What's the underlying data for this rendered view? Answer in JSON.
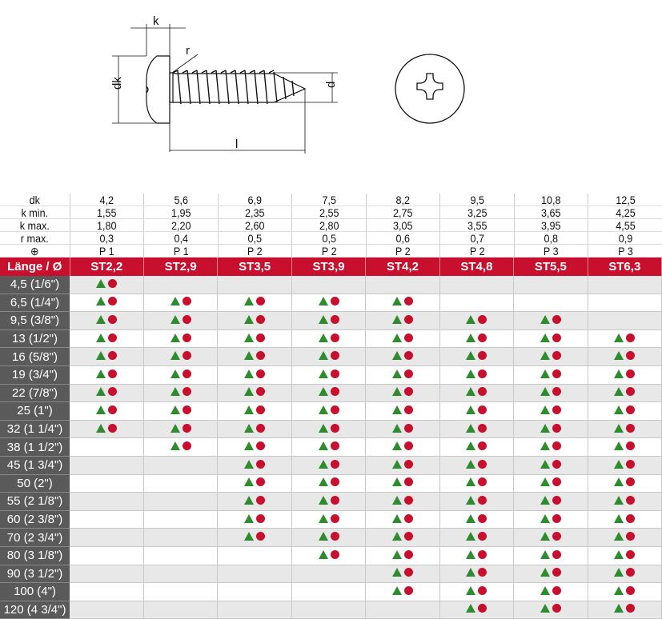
{
  "drawing": {
    "labels": {
      "k": "k",
      "r": "r",
      "dk": "dk",
      "d": "d",
      "l": "l"
    }
  },
  "colors": {
    "header_red": "#c8102e",
    "triangle_green": "#2e8b2e",
    "circle_red": "#c8102e",
    "label_grey": "#5a5a5a"
  },
  "spec": {
    "rows": [
      {
        "label": "dk",
        "values": [
          "4,2",
          "5,6",
          "6,9",
          "7,5",
          "8,2",
          "9,5",
          "10,8",
          "12,5"
        ]
      },
      {
        "label": "k min.",
        "values": [
          "1,55",
          "1,95",
          "2,35",
          "2,55",
          "2,75",
          "3,25",
          "3,65",
          "4,25"
        ]
      },
      {
        "label": "k max.",
        "values": [
          "1,80",
          "2,20",
          "2,60",
          "2,80",
          "3,05",
          "3,55",
          "3,95",
          "4,55"
        ]
      },
      {
        "label": "r max.",
        "values": [
          "0,3",
          "0,4",
          "0,5",
          "0,5",
          "0,6",
          "0,7",
          "0,8",
          "0,9"
        ]
      },
      {
        "label": "⊕",
        "icon": "phillips-drive-icon",
        "values": [
          "P 1",
          "P 1",
          "P 2",
          "P 2",
          "P 2",
          "P 2",
          "P 3",
          "P 3"
        ]
      }
    ]
  },
  "table": {
    "corner": "Länge / Ø",
    "columns": [
      "ST2,2",
      "ST2,9",
      "ST3,5",
      "ST3,9",
      "ST4,2",
      "ST4,8",
      "ST5,5",
      "ST6,3"
    ],
    "rows": [
      {
        "length": "4,5 (1/6\")",
        "avail": [
          1,
          0,
          0,
          0,
          0,
          0,
          0,
          0
        ]
      },
      {
        "length": "6,5 (1/4\")",
        "avail": [
          1,
          1,
          1,
          1,
          1,
          0,
          0,
          0
        ]
      },
      {
        "length": "9,5 (3/8\")",
        "avail": [
          1,
          1,
          1,
          1,
          1,
          1,
          1,
          0
        ]
      },
      {
        "length": "13 (1/2\")",
        "avail": [
          1,
          1,
          1,
          1,
          1,
          1,
          1,
          1
        ]
      },
      {
        "length": "16 (5/8\")",
        "avail": [
          1,
          1,
          1,
          1,
          1,
          1,
          1,
          1
        ]
      },
      {
        "length": "19 (3/4\")",
        "avail": [
          1,
          1,
          1,
          1,
          1,
          1,
          1,
          1
        ]
      },
      {
        "length": "22 (7/8\")",
        "avail": [
          1,
          1,
          1,
          1,
          1,
          1,
          1,
          1
        ]
      },
      {
        "length": "25 (1\")",
        "avail": [
          1,
          1,
          1,
          1,
          1,
          1,
          1,
          1
        ]
      },
      {
        "length": "32 (1 1/4\")",
        "avail": [
          1,
          1,
          1,
          1,
          1,
          1,
          1,
          1
        ]
      },
      {
        "length": "38 (1 1/2\")",
        "avail": [
          0,
          1,
          1,
          1,
          1,
          1,
          1,
          1
        ]
      },
      {
        "length": "45 (1 3/4\")",
        "avail": [
          0,
          0,
          1,
          1,
          1,
          1,
          1,
          1
        ]
      },
      {
        "length": "50 (2\")",
        "avail": [
          0,
          0,
          1,
          1,
          1,
          1,
          1,
          1
        ]
      },
      {
        "length": "55 (2 1/8\")",
        "avail": [
          0,
          0,
          1,
          1,
          1,
          1,
          1,
          1
        ]
      },
      {
        "length": "60 (2 3/8\")",
        "avail": [
          0,
          0,
          1,
          1,
          1,
          1,
          1,
          1
        ]
      },
      {
        "length": "70 (2 3/4\")",
        "avail": [
          0,
          0,
          1,
          1,
          1,
          1,
          1,
          1
        ]
      },
      {
        "length": "80 (3 1/8\")",
        "avail": [
          0,
          0,
          0,
          1,
          1,
          1,
          1,
          1
        ]
      },
      {
        "length": "90 (3 1/2\")",
        "avail": [
          0,
          0,
          0,
          0,
          1,
          1,
          1,
          1
        ]
      },
      {
        "length": "100 (4\")",
        "avail": [
          0,
          0,
          0,
          0,
          1,
          1,
          1,
          1
        ]
      },
      {
        "length": "120 (4 3/4\")",
        "avail": [
          0,
          0,
          0,
          0,
          0,
          1,
          1,
          1
        ]
      }
    ]
  }
}
